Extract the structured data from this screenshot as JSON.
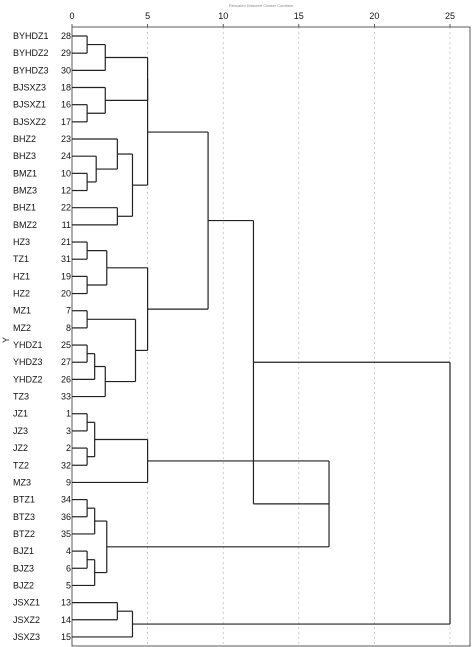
{
  "chart_data": {
    "type": "dendrogram",
    "title": "Rescaled Distance Cluster Combine",
    "ylabel": "Y",
    "xlim": [
      0,
      25
    ],
    "x_ticks": [
      "0",
      "5",
      "10",
      "15",
      "20",
      "25"
    ],
    "grid": "vertical dashed",
    "leaves": [
      {
        "label": "BYHDZ1",
        "num": "28"
      },
      {
        "label": "BYHDZ2",
        "num": "29"
      },
      {
        "label": "BYHDZ3",
        "num": "30"
      },
      {
        "label": "BJSXZ3",
        "num": "18"
      },
      {
        "label": "BJSXZ1",
        "num": "16"
      },
      {
        "label": "BJSXZ2",
        "num": "17"
      },
      {
        "label": "BHZ2",
        "num": "23"
      },
      {
        "label": "BHZ3",
        "num": "24"
      },
      {
        "label": "BMZ1",
        "num": "10"
      },
      {
        "label": "BMZ3",
        "num": "12"
      },
      {
        "label": "BHZ1",
        "num": "22"
      },
      {
        "label": "BMZ2",
        "num": "11"
      },
      {
        "label": "HZ3",
        "num": "21"
      },
      {
        "label": "TZ1",
        "num": "31"
      },
      {
        "label": "HZ1",
        "num": "19"
      },
      {
        "label": "HZ2",
        "num": "20"
      },
      {
        "label": "MZ1",
        "num": "7"
      },
      {
        "label": "MZ2",
        "num": "8"
      },
      {
        "label": "YHDZ1",
        "num": "25"
      },
      {
        "label": "YHDZ3",
        "num": "27"
      },
      {
        "label": "YHDZ2",
        "num": "26"
      },
      {
        "label": "TZ3",
        "num": "33"
      },
      {
        "label": "JZ1",
        "num": "1"
      },
      {
        "label": "JZ3",
        "num": "3"
      },
      {
        "label": "JZ2",
        "num": "2"
      },
      {
        "label": "TZ2",
        "num": "32"
      },
      {
        "label": "MZ3",
        "num": "9"
      },
      {
        "label": "BTZ1",
        "num": "34"
      },
      {
        "label": "BTZ3",
        "num": "36"
      },
      {
        "label": "BTZ2",
        "num": "35"
      },
      {
        "label": "BJZ1",
        "num": "4"
      },
      {
        "label": "BJZ3",
        "num": "6"
      },
      {
        "label": "BJZ2",
        "num": "5"
      },
      {
        "label": "JSXZ1",
        "num": "13"
      },
      {
        "label": "JSXZ2",
        "num": "14"
      },
      {
        "label": "JSXZ3",
        "num": "15"
      }
    ],
    "merges": [
      {
        "id": "A",
        "children": [
          "L0",
          "L1"
        ],
        "height": 1.0
      },
      {
        "id": "B",
        "children": [
          "A",
          "L2"
        ],
        "height": 2.2
      },
      {
        "id": "C",
        "children": [
          "L4",
          "L5"
        ],
        "height": 1.0
      },
      {
        "id": "D",
        "children": [
          "L3",
          "C"
        ],
        "height": 2.2
      },
      {
        "id": "E",
        "children": [
          "B",
          "D"
        ],
        "height": 5.0
      },
      {
        "id": "F",
        "children": [
          "L8",
          "L9"
        ],
        "height": 1.0
      },
      {
        "id": "G",
        "children": [
          "L7",
          "F"
        ],
        "height": 1.6
      },
      {
        "id": "H",
        "children": [
          "L6",
          "G"
        ],
        "height": 3.0
      },
      {
        "id": "I",
        "children": [
          "L10",
          "L11"
        ],
        "height": 3.0
      },
      {
        "id": "J",
        "children": [
          "H",
          "I"
        ],
        "height": 4.0
      },
      {
        "id": "K",
        "children": [
          "E",
          "J"
        ],
        "height": 5.0
      },
      {
        "id": "L",
        "children": [
          "L12",
          "L13"
        ],
        "height": 1.0
      },
      {
        "id": "M",
        "children": [
          "L14",
          "L15"
        ],
        "height": 1.0
      },
      {
        "id": "N",
        "children": [
          "L",
          "M"
        ],
        "height": 2.3
      },
      {
        "id": "O",
        "children": [
          "L16",
          "L17"
        ],
        "height": 1.0
      },
      {
        "id": "P",
        "children": [
          "L18",
          "L19"
        ],
        "height": 1.0
      },
      {
        "id": "Q",
        "children": [
          "P",
          "L20"
        ],
        "height": 1.5
      },
      {
        "id": "R",
        "children": [
          "Q",
          "L21"
        ],
        "height": 2.2
      },
      {
        "id": "S",
        "children": [
          "O",
          "R"
        ],
        "height": 4.2
      },
      {
        "id": "T",
        "children": [
          "N",
          "S"
        ],
        "height": 5.0
      },
      {
        "id": "U",
        "children": [
          "K",
          "T"
        ],
        "height": 9.0
      },
      {
        "id": "V",
        "children": [
          "L22",
          "L23"
        ],
        "height": 1.0
      },
      {
        "id": "W",
        "children": [
          "L24",
          "L25"
        ],
        "height": 1.0
      },
      {
        "id": "X",
        "children": [
          "V",
          "W"
        ],
        "height": 1.5
      },
      {
        "id": "Y",
        "children": [
          "X",
          "L26"
        ],
        "height": 5.0
      },
      {
        "id": "Z",
        "children": [
          "L27",
          "L28"
        ],
        "height": 1.0
      },
      {
        "id": "AA",
        "children": [
          "Z",
          "L29"
        ],
        "height": 1.5
      },
      {
        "id": "AB",
        "children": [
          "L30",
          "L31"
        ],
        "height": 1.0
      },
      {
        "id": "AC",
        "children": [
          "AB",
          "L32"
        ],
        "height": 1.5
      },
      {
        "id": "AD",
        "children": [
          "AA",
          "AC"
        ],
        "height": 2.3
      },
      {
        "id": "AE",
        "children": [
          "Y",
          "AD"
        ],
        "height": 17.0
      },
      {
        "id": "AF",
        "children": [
          "U",
          "AE"
        ],
        "height": 12.0
      },
      {
        "id": "AG",
        "children": [
          "L33",
          "L34"
        ],
        "height": 3.0
      },
      {
        "id": "AH",
        "children": [
          "AG",
          "L35"
        ],
        "height": 4.0
      },
      {
        "id": "AI",
        "children": [
          "AF",
          "AH"
        ],
        "height": 25.0
      }
    ]
  }
}
